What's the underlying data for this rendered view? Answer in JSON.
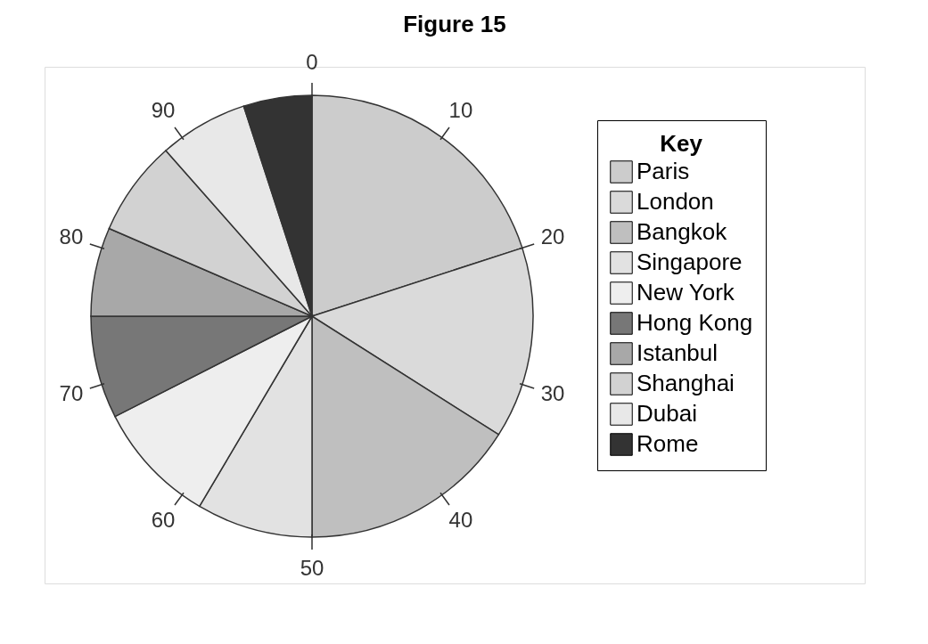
{
  "chart_data": {
    "type": "pie",
    "title": "Figure 15",
    "legend_title": "Key",
    "legend": "right",
    "categories": [
      "Paris",
      "London",
      "Bangkok",
      "Singapore",
      "New York",
      "Hong Kong",
      "Istanbul",
      "Shanghai",
      "Dubai",
      "Rome"
    ],
    "values": [
      20,
      14,
      16,
      8.5,
      9,
      7.5,
      6.5,
      7,
      6.5,
      5
    ],
    "colors": [
      "#cccccc",
      "#dadada",
      "#bfbfbf",
      "#e2e2e2",
      "#eeeeee",
      "#777777",
      "#a8a8a8",
      "#d2d2d2",
      "#e8e8e8",
      "#333333"
    ],
    "annotations": [
      "0",
      "10",
      "20",
      "30",
      "40",
      "50",
      "60",
      "70",
      "80",
      "90"
    ]
  }
}
